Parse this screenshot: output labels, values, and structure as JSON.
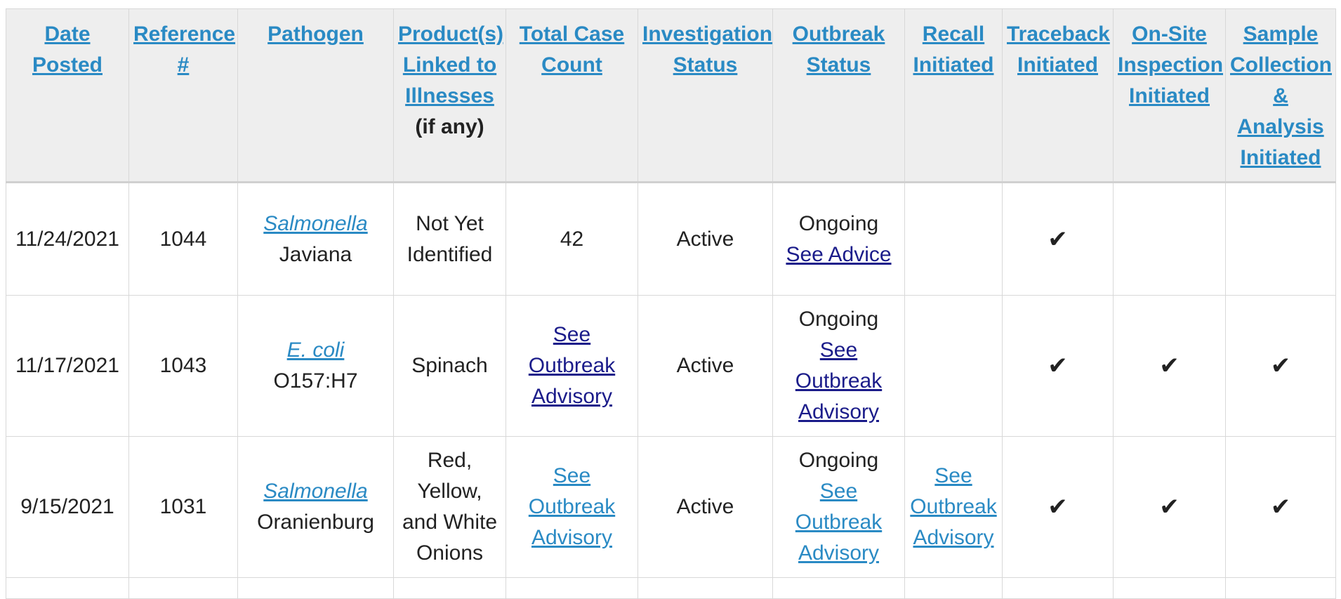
{
  "colors": {
    "header_bg": "#eeeeee",
    "link": "#2a8ac4",
    "dark_link": "#1b1c8a",
    "border": "#d8d8d8",
    "text": "#222222"
  },
  "headers": [
    {
      "label": "Date Posted",
      "sub": ""
    },
    {
      "label": "Reference #",
      "sub": ""
    },
    {
      "label": "Pathogen",
      "sub": ""
    },
    {
      "label": "Product(s) Linked to Illnesses",
      "sub": "(if any)"
    },
    {
      "label": "Total Case Count",
      "sub": ""
    },
    {
      "label": "Investigation Status",
      "sub": ""
    },
    {
      "label": "Outbreak Status",
      "sub": ""
    },
    {
      "label": "Recall Initiated",
      "sub": ""
    },
    {
      "label": "Traceback Initiated",
      "sub": ""
    },
    {
      "label": "On-Site Inspection Initiated",
      "sub": ""
    },
    {
      "label": "Sample Collection & Analysis Initiated",
      "sub": ""
    }
  ],
  "rows": [
    {
      "date": "11/24/2021",
      "reference": "1044",
      "pathogen_genus": "Salmonella",
      "pathogen_strain": "Javiana",
      "product": "Not Yet Identified",
      "case_count": "42",
      "investigation_status": "Active",
      "outbreak_status": "Ongoing",
      "outbreak_link": "See Advice",
      "recall": "",
      "traceback": "✔",
      "onsite": "",
      "sample": ""
    },
    {
      "date": "11/17/2021",
      "reference": "1043",
      "pathogen_genus": "E. coli",
      "pathogen_strain": "O157:H7",
      "product": "Spinach",
      "case_count": "See Outbreak Advisory",
      "investigation_status": "Active",
      "outbreak_status": "Ongoing",
      "outbreak_link": "See Outbreak Advisory",
      "recall": "",
      "traceback": "✔",
      "onsite": "✔",
      "sample": "✔"
    },
    {
      "date": "9/15/2021",
      "reference": "1031",
      "pathogen_genus": "Salmonella",
      "pathogen_strain": "Oranienburg",
      "product": "Red, Yellow, and White Onions",
      "case_count": "See Outbreak Advisory",
      "investigation_status": "Active",
      "outbreak_status": "Ongoing",
      "outbreak_link": "See Outbreak Advisory",
      "recall": "See Outbreak Advisory",
      "traceback": "✔",
      "onsite": "✔",
      "sample": "✔"
    }
  ]
}
